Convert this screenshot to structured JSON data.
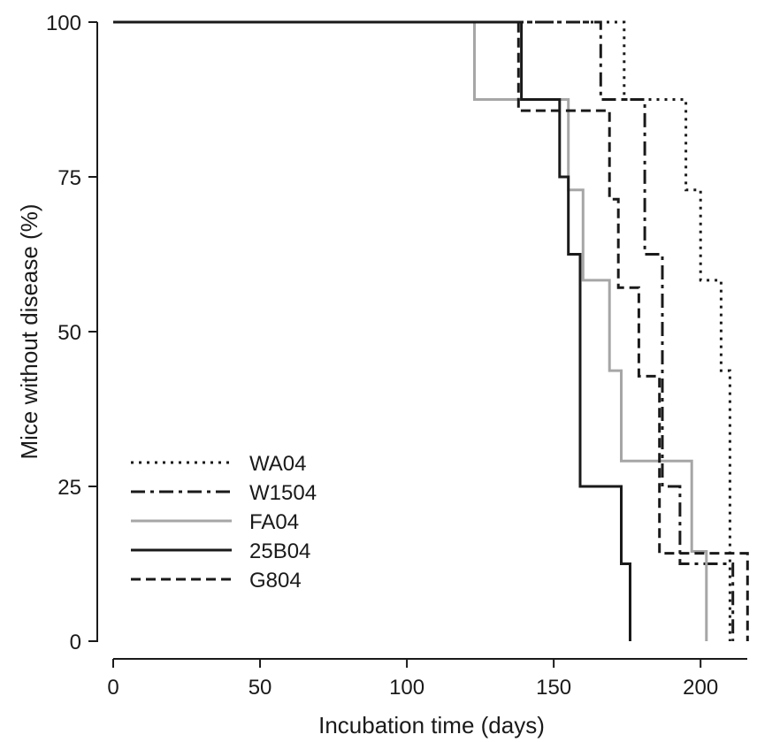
{
  "chart_data": {
    "type": "line",
    "step": true,
    "title": "",
    "xlabel": "Incubation time (days)",
    "ylabel": "Mice without disease (%)",
    "xlim": [
      0,
      215
    ],
    "ylim": [
      0,
      100
    ],
    "xticks": [
      0,
      50,
      100,
      150,
      200
    ],
    "yticks": [
      0,
      25,
      50,
      75,
      100
    ],
    "grid": false,
    "legend_position": "bottom-left",
    "series": [
      {
        "name": "WA04",
        "style": "dotted",
        "color": "#1a1a1a",
        "points": [
          [
            0,
            100
          ],
          [
            174,
            100
          ],
          [
            174,
            87.5
          ],
          [
            195,
            87.5
          ],
          [
            195,
            72.9
          ],
          [
            200,
            72.9
          ],
          [
            200,
            58.3
          ],
          [
            207,
            58.3
          ],
          [
            207,
            43.7
          ],
          [
            210,
            43.7
          ],
          [
            210,
            0
          ]
        ]
      },
      {
        "name": "W1504",
        "style": "dashdot",
        "color": "#1a1a1a",
        "points": [
          [
            0,
            100
          ],
          [
            166,
            100
          ],
          [
            166,
            87.5
          ],
          [
            181,
            87.5
          ],
          [
            181,
            62.5
          ],
          [
            187,
            62.5
          ],
          [
            187,
            25
          ],
          [
            193,
            25
          ],
          [
            193,
            12.5
          ],
          [
            211,
            12.5
          ],
          [
            211,
            0
          ]
        ]
      },
      {
        "name": "FA04",
        "style": "solid",
        "color": "#a6a6a6",
        "points": [
          [
            0,
            100
          ],
          [
            123,
            100
          ],
          [
            123,
            87.5
          ],
          [
            155,
            87.5
          ],
          [
            155,
            72.9
          ],
          [
            160,
            72.9
          ],
          [
            160,
            58.3
          ],
          [
            169,
            58.3
          ],
          [
            169,
            43.7
          ],
          [
            173,
            43.7
          ],
          [
            173,
            29.1
          ],
          [
            197,
            29.1
          ],
          [
            197,
            14.5
          ],
          [
            202,
            14.5
          ],
          [
            202,
            0
          ]
        ]
      },
      {
        "name": "25B04",
        "style": "solid",
        "color": "#1a1a1a",
        "points": [
          [
            0,
            100
          ],
          [
            139,
            100
          ],
          [
            139,
            87.5
          ],
          [
            152,
            87.5
          ],
          [
            152,
            75
          ],
          [
            155,
            75
          ],
          [
            155,
            62.5
          ],
          [
            159,
            62.5
          ],
          [
            159,
            25
          ],
          [
            173,
            25
          ],
          [
            173,
            12.5
          ],
          [
            176,
            12.5
          ],
          [
            176,
            0
          ]
        ]
      },
      {
        "name": "G804",
        "style": "dashed",
        "color": "#1a1a1a",
        "points": [
          [
            0,
            100
          ],
          [
            138,
            100
          ],
          [
            138,
            85.7
          ],
          [
            169,
            85.7
          ],
          [
            169,
            71.4
          ],
          [
            172,
            71.4
          ],
          [
            172,
            57.1
          ],
          [
            179,
            57.1
          ],
          [
            179,
            42.8
          ],
          [
            186,
            42.8
          ],
          [
            186,
            14.2
          ],
          [
            216,
            14.2
          ],
          [
            216,
            0
          ]
        ]
      }
    ]
  }
}
